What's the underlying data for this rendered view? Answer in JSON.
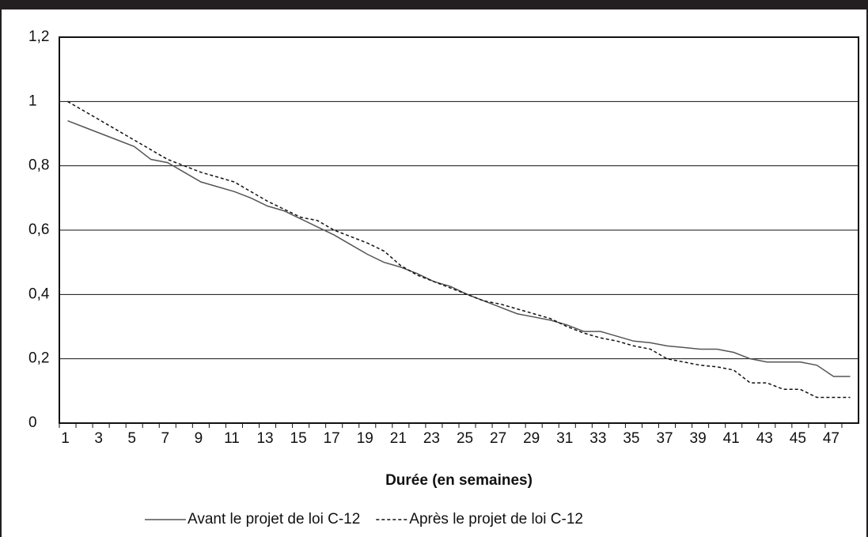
{
  "chart_data": {
    "type": "line",
    "xlabel": "Durée (en semaines)",
    "categories": [
      1,
      null,
      3,
      null,
      5,
      null,
      7,
      null,
      9,
      null,
      11,
      null,
      13,
      null,
      15,
      null,
      17,
      null,
      19,
      null,
      21,
      null,
      23,
      null,
      25,
      null,
      27,
      null,
      29,
      null,
      31,
      null,
      33,
      null,
      35,
      null,
      37,
      null,
      39,
      null,
      41,
      null,
      43,
      null,
      45,
      null,
      47,
      null
    ],
    "series": [
      {
        "name": "Avant le projet de loi C-12",
        "color": "#555555",
        "dash": false,
        "values": [
          0.94,
          0.92,
          0.9,
          0.88,
          0.86,
          0.82,
          0.81,
          0.78,
          0.75,
          0.735,
          0.72,
          0.7,
          0.675,
          0.66,
          0.635,
          0.61,
          0.585,
          0.555,
          0.525,
          0.5,
          0.485,
          0.465,
          0.44,
          0.425,
          0.4,
          0.38,
          0.36,
          0.34,
          0.33,
          0.32,
          0.305,
          0.285,
          0.285,
          0.27,
          0.255,
          0.25,
          0.24,
          0.235,
          0.23,
          0.23,
          0.22,
          0.2,
          0.19,
          0.19,
          0.19,
          0.18,
          0.145,
          0.145
        ]
      },
      {
        "name": "Après le projet de loi C-12",
        "color": "#111111",
        "dash": true,
        "values": [
          1.0,
          0.97,
          0.94,
          0.91,
          0.88,
          0.85,
          0.82,
          0.8,
          0.78,
          0.765,
          0.75,
          0.72,
          0.69,
          0.665,
          0.64,
          0.63,
          0.6,
          0.58,
          0.56,
          0.535,
          0.49,
          0.46,
          0.44,
          0.42,
          0.4,
          0.38,
          0.37,
          0.355,
          0.34,
          0.325,
          0.3,
          0.28,
          0.265,
          0.255,
          0.24,
          0.23,
          0.2,
          0.19,
          0.18,
          0.175,
          0.165,
          0.125,
          0.125,
          0.105,
          0.105,
          0.08,
          0.08,
          0.08
        ]
      }
    ],
    "ylim": [
      0,
      1.2
    ],
    "yticks": [
      0,
      {
        "value": 0.2,
        "label": "0,2"
      },
      {
        "value": 0.4,
        "label": "0,4"
      },
      {
        "value": 0.6,
        "label": "0,6"
      },
      {
        "value": 0.8,
        "label": "0,8"
      },
      1,
      {
        "value": 1.2,
        "label": "1,2"
      }
    ],
    "grid": true,
    "legend": "bottom"
  }
}
